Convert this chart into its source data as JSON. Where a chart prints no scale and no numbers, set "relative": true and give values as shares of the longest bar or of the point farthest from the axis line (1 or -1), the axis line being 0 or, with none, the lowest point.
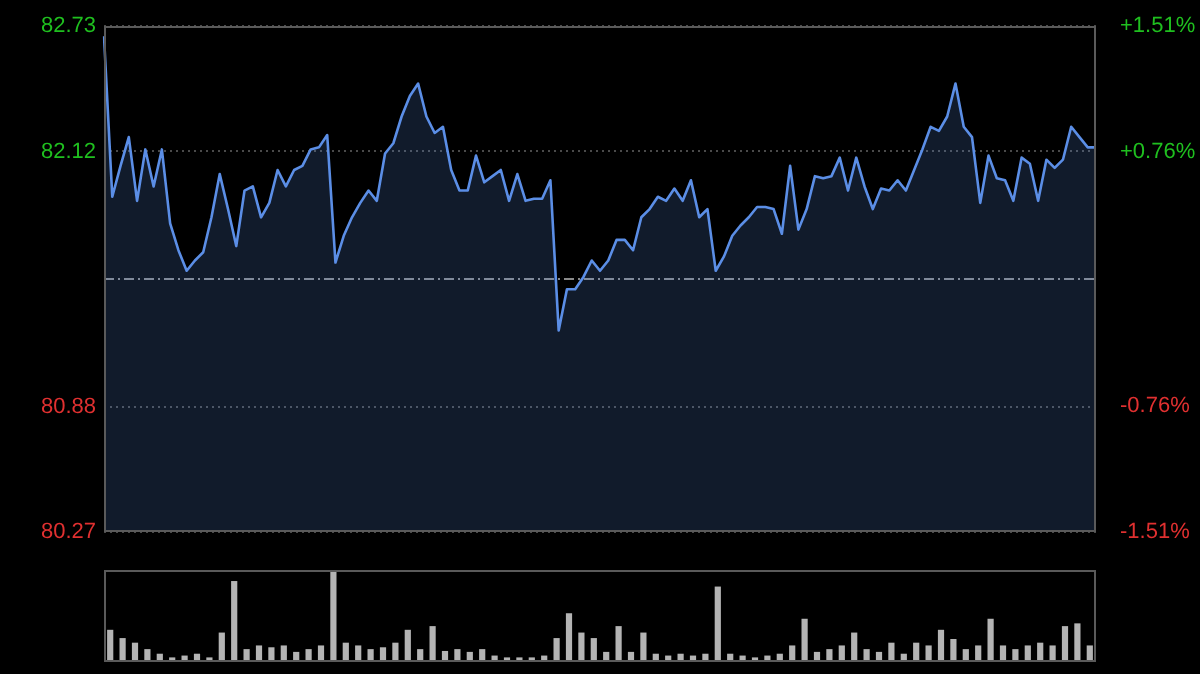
{
  "chart_data": [
    {
      "type": "area",
      "categories": [
        null,
        null,
        null,
        null,
        null,
        null,
        null,
        null,
        null,
        null,
        null,
        null,
        null,
        null,
        null,
        null,
        null,
        null,
        null,
        null,
        null,
        null,
        null,
        null,
        null,
        null,
        null,
        null,
        null,
        null,
        null,
        null,
        null,
        null,
        null,
        null,
        null,
        null,
        null,
        null,
        null,
        null,
        null,
        null,
        null,
        null,
        null,
        null,
        null,
        null,
        null,
        null,
        null,
        null,
        null,
        null,
        null,
        null,
        null,
        null,
        null,
        null,
        null,
        null,
        null,
        null,
        null,
        null,
        null,
        null,
        null,
        null,
        null,
        null,
        null,
        null,
        null,
        null,
        null,
        null,
        null,
        null,
        null,
        null,
        null,
        null,
        null,
        null,
        null,
        null,
        null,
        null,
        null,
        null,
        null,
        null,
        null,
        null,
        null,
        null,
        null,
        null,
        null,
        null,
        null,
        null,
        null,
        null,
        null,
        null,
        null,
        null,
        null,
        null,
        null,
        null,
        null,
        null,
        null,
        null,
        null
      ],
      "ylim": [
        80.27,
        82.73
      ],
      "yticks": [
        80.27,
        80.88,
        82.12,
        82.73
      ],
      "y2lim": [
        -1.51,
        1.51
      ],
      "y2ticks": [
        {
          "value": -1.51,
          "label": "-1.51%"
        },
        {
          "value": -0.76,
          "label": "-0.76%"
        },
        {
          "value": 0.76,
          "label": "+0.76%"
        },
        {
          "value": 1.51,
          "label": "+1.51%"
        }
      ],
      "grid": true,
      "legend": false,
      "marker": "none",
      "ref_lines": [
        {
          "axis": "y",
          "value": 81.5,
          "color": "#8a8a8a",
          "line_style": "dashdot"
        }
      ],
      "series": [
        {
          "color": "#5b8ee6",
          "values": [
            82.68,
            81.9,
            82.05,
            82.19,
            81.88,
            82.13,
            81.95,
            82.13,
            81.77,
            81.64,
            81.54,
            81.59,
            81.63,
            81.8,
            82.01,
            81.84,
            81.66,
            81.93,
            81.95,
            81.8,
            81.87,
            82.03,
            81.95,
            82.03,
            82.05,
            82.13,
            82.14,
            82.2,
            81.58,
            81.71,
            81.8,
            81.87,
            81.93,
            81.88,
            82.11,
            82.16,
            82.29,
            82.39,
            82.45,
            82.29,
            82.21,
            82.24,
            82.03,
            81.93,
            81.93,
            82.1,
            81.97,
            82.0,
            82.03,
            81.88,
            82.01,
            81.88,
            81.89,
            81.89,
            81.98,
            81.25,
            81.45,
            81.45,
            81.51,
            81.59,
            81.54,
            81.59,
            81.69,
            81.69,
            81.64,
            81.8,
            81.84,
            81.9,
            81.88,
            81.94,
            81.88,
            81.98,
            81.8,
            81.84,
            81.54,
            81.61,
            81.71,
            81.76,
            81.8,
            81.85,
            81.85,
            81.84,
            81.72,
            82.05,
            81.74,
            81.84,
            82.0,
            81.99,
            82.0,
            82.09,
            81.93,
            82.09,
            81.95,
            81.84,
            81.94,
            81.93,
            81.98,
            81.93,
            82.03,
            82.13,
            82.24,
            82.22,
            82.29,
            82.45,
            82.24,
            82.19,
            81.87,
            82.1,
            81.99,
            81.98,
            81.88,
            82.09,
            82.06,
            81.88,
            82.08,
            82.04,
            82.08,
            82.24,
            82.19,
            82.14,
            82.14
          ]
        }
      ]
    },
    {
      "type": "bar",
      "relative": true,
      "legend": false,
      "color": "#b4b4b4",
      "categories": [
        null,
        null,
        null,
        null,
        null,
        null,
        null,
        null,
        null,
        null,
        null,
        null,
        null,
        null,
        null,
        null,
        null,
        null,
        null,
        null,
        null,
        null,
        null,
        null,
        null,
        null,
        null,
        null,
        null,
        null,
        null,
        null,
        null,
        null,
        null,
        null,
        null,
        null,
        null,
        null,
        null,
        null,
        null,
        null,
        null,
        null,
        null,
        null,
        null,
        null,
        null,
        null,
        null,
        null,
        null,
        null,
        null,
        null,
        null,
        null,
        null,
        null,
        null,
        null,
        null,
        null,
        null,
        null,
        null,
        null,
        null,
        null,
        null,
        null,
        null,
        null,
        null,
        null,
        null,
        null
      ],
      "values": [
        0.35,
        0.26,
        0.21,
        0.14,
        0.09,
        0.05,
        0.07,
        0.09,
        0.05,
        0.32,
        0.88,
        0.14,
        0.18,
        0.16,
        0.18,
        0.11,
        0.14,
        0.18,
        1,
        0.21,
        0.18,
        0.14,
        0.16,
        0.21,
        0.35,
        0.14,
        0.39,
        0.12,
        0.14,
        0.11,
        0.14,
        0.07,
        0.05,
        0.05,
        0.05,
        0.07,
        0.26,
        0.53,
        0.32,
        0.26,
        0.11,
        0.39,
        0.11,
        0.32,
        0.09,
        0.07,
        0.09,
        0.07,
        0.09,
        0.82,
        0.09,
        0.07,
        0.05,
        0.07,
        0.09,
        0.18,
        0.47,
        0.11,
        0.14,
        0.18,
        0.32,
        0.14,
        0.11,
        0.21,
        0.09,
        0.21,
        0.18,
        0.35,
        0.25,
        0.14,
        0.18,
        0.47,
        0.18,
        0.14,
        0.18,
        0.21,
        0.18,
        0.39,
        0.42,
        0.18
      ]
    }
  ]
}
